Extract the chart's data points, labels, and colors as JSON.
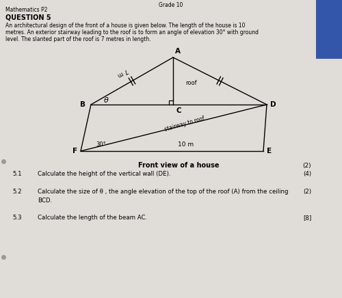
{
  "bg_color": "#ccc9c4",
  "paper_color": "#e0dcd8",
  "title_top": "Grade 10",
  "header_left": "Mathematics P2",
  "question_title": "QUESTION 5",
  "question_text_line1": "An architectural design of the front of a house is given below. The length of the house is 10",
  "question_text_line2": "metres. An exterior stairway leading to the roof is to form an angle of elevation 30° with ground",
  "question_text_line3": "level. The slanted part of the roof is 7 metres in length.",
  "marks_diagram": "(2)",
  "diagram_label": "Front view of a house",
  "label_A": "A",
  "label_B": "B",
  "label_C": "C",
  "label_D": "D",
  "label_E": "E",
  "label_F": "F",
  "label_7m": "7 m",
  "label_roof": "roof",
  "label_theta": "θ",
  "label_30deg": "30°",
  "label_10m": "10 m",
  "label_stairway": "stairway to roof",
  "q51_num": "5.1",
  "q51_text": "Calculate the height of the vertical wall (DE).",
  "q51_marks": "(4)",
  "q52_num": "5.2",
  "q52_text": "Calculate the size of θ , the angle elevation of the top of the roof (A) from the ceiling",
  "q52_marks": "(2)",
  "q52_text2": "BCD.",
  "q53_num": "5.3",
  "q53_text": "Calculate the length of the beam AC.",
  "q53_marks": "[8]"
}
